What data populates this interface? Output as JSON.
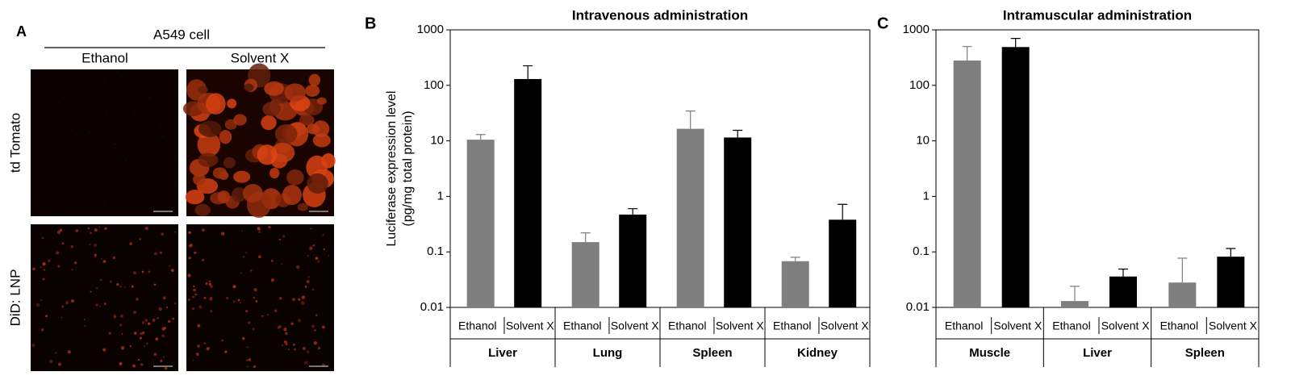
{
  "panel_a": {
    "label": "A",
    "title": "A549 cell",
    "columns": [
      "Ethanol",
      "Solvent X"
    ],
    "rows": [
      "td Tomato",
      "DiD: LNP"
    ]
  },
  "chart_data": [
    {
      "type": "bar",
      "panel": "B",
      "title": "Intravenous administration",
      "ylabel": [
        "Luciferase expression level",
        "(pg/mg total protein)"
      ],
      "log_scale": true,
      "ylim": [
        0.01,
        1000
      ],
      "yticks": [
        0.01,
        0.1,
        1,
        10,
        100,
        1000
      ],
      "categories": [
        "Liver",
        "Lung",
        "Spleen",
        "Kidney"
      ],
      "series": [
        {
          "name": "Ethanol",
          "color": "#7f7f7f",
          "values": [
            10.5,
            0.15,
            16.5,
            0.068
          ],
          "errors": [
            2.5,
            0.07,
            18,
            0.012
          ]
        },
        {
          "name": "Solvent X",
          "color": "#000000",
          "values": [
            130,
            0.47,
            11.5,
            0.38
          ],
          "errors": [
            95,
            0.13,
            4,
            0.34
          ]
        }
      ]
    },
    {
      "type": "bar",
      "panel": "C",
      "title": "Intramuscular administration",
      "log_scale": true,
      "ylim": [
        0.01,
        1000
      ],
      "yticks": [
        0.01,
        0.1,
        1,
        10,
        100,
        1000
      ],
      "categories": [
        "Muscle",
        "Liver",
        "Spleen"
      ],
      "series": [
        {
          "name": "Ethanol",
          "color": "#7f7f7f",
          "values": [
            280,
            0.013,
            0.028
          ],
          "errors": [
            220,
            0.011,
            0.049
          ]
        },
        {
          "name": "Solvent X",
          "color": "#000000",
          "values": [
            490,
            0.036,
            0.082
          ],
          "errors": [
            210,
            0.013,
            0.033
          ]
        }
      ]
    }
  ]
}
